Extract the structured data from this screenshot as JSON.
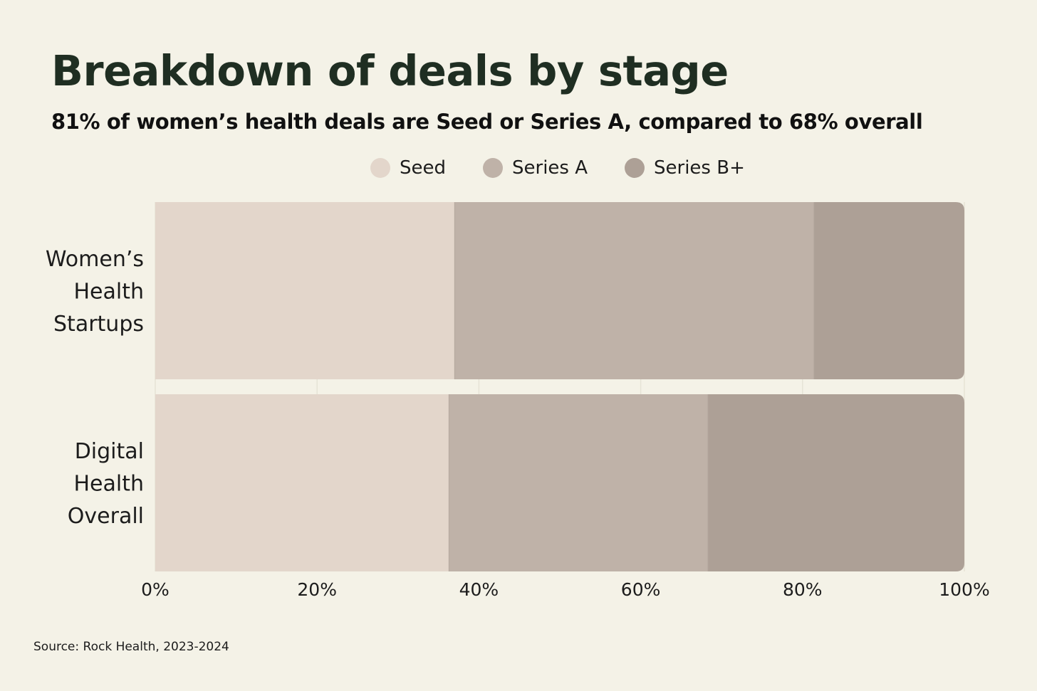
{
  "title": "Breakdown of deals by stage",
  "subtitle": "81% of women’s health deals are Seed or Series A, compared to 68% overall",
  "source": "Source: Rock Health, 2023-2024",
  "colors": {
    "background": "#f4f2e7",
    "seed": "#e3d6cb",
    "series_a": "#bfb2a8",
    "series_b_plus": "#ada096",
    "title": "#1f2e22"
  },
  "legend": [
    {
      "label": "Seed",
      "color": "#e3d6cb"
    },
    {
      "label": "Series A",
      "color": "#bfb2a8"
    },
    {
      "label": "Series B+",
      "color": "#ada096"
    }
  ],
  "chart_data": {
    "type": "bar",
    "orientation": "horizontal",
    "stacked": true,
    "categories": [
      [
        "Women’s",
        "Health",
        "Startups"
      ],
      [
        "Digital",
        "Health",
        "Overall"
      ]
    ],
    "series": [
      {
        "name": "Seed",
        "color": "#e3d6cb",
        "values": [
          37,
          36.3
        ]
      },
      {
        "name": "Series A",
        "color": "#bfb2a8",
        "values": [
          44.4,
          32
        ]
      },
      {
        "name": "Series B+",
        "color": "#ada096",
        "values": [
          18.6,
          31.7
        ]
      }
    ],
    "xlim": [
      0,
      100
    ],
    "xticks": [
      "0%",
      "20%",
      "40%",
      "60%",
      "80%",
      "100%"
    ],
    "grid": true,
    "legend_position": "top"
  }
}
